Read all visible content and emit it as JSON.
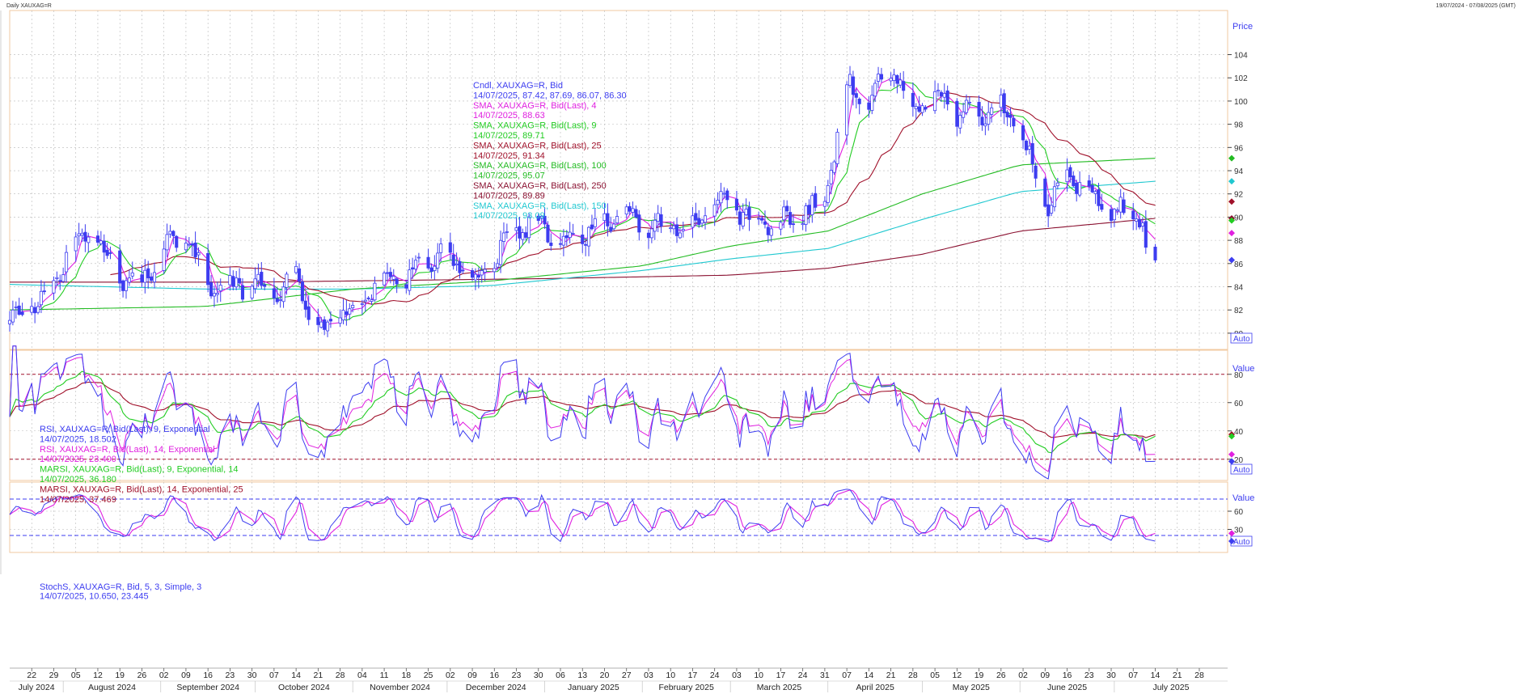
{
  "window": {
    "title": "Daily XAUXAG=R",
    "date_range": "19/07/2024 - 07/08/2025 (GMT)"
  },
  "chart_data": [
    {
      "type": "line",
      "panel": "price",
      "axis_title": "Price",
      "auto_label": "Auto",
      "ylim": [
        78.6,
        107.8
      ],
      "yticks": [
        80,
        82,
        84,
        86,
        88,
        90,
        92,
        94,
        96,
        98,
        100,
        102,
        104
      ],
      "series_anchor": "14/07/2025",
      "legend": [
        {
          "name": "Cndl, XAUXAG=R, Bid",
          "value": "14/07/2025, 87.42, 87.69, 86.07, 86.30",
          "color": "#3d3df0"
        },
        {
          "name": "SMA, XAUXAG=R, Bid(Last),  4",
          "value": "14/07/2025, 88.63",
          "color": "#e020e0"
        },
        {
          "name": "SMA, XAUXAG=R, Bid(Last),  9",
          "value": "14/07/2025, 89.71",
          "color": "#22cc22"
        },
        {
          "name": "SMA, XAUXAG=R, Bid(Last),  25",
          "value": "14/07/2025, 91.34",
          "color": "#a0102a"
        },
        {
          "name": "SMA, XAUXAG=R, Bid(Last),  100",
          "value": "14/07/2025, 95.07",
          "color": "#22bb22"
        },
        {
          "name": "SMA, XAUXAG=R, Bid(Last),  250",
          "value": "14/07/2025, 89.89",
          "color": "#8a1030"
        },
        {
          "name": "SMA, XAUXAG=R, Bid(Last),  150",
          "value": "14/07/2025, 93.09",
          "color": "#20c8d0"
        }
      ],
      "close_anchors": [
        {
          "x": "2024-07-15",
          "y": 81.0
        },
        {
          "x": "2024-07-29",
          "y": 84.0
        },
        {
          "x": "2024-08-05",
          "y": 88.5
        },
        {
          "x": "2024-08-12",
          "y": 88.0
        },
        {
          "x": "2024-08-19",
          "y": 85.0
        },
        {
          "x": "2024-08-26",
          "y": 84.5
        },
        {
          "x": "2024-09-02",
          "y": 87.5
        },
        {
          "x": "2024-09-09",
          "y": 88.8
        },
        {
          "x": "2024-09-16",
          "y": 84.0
        },
        {
          "x": "2024-09-23",
          "y": 83.8
        },
        {
          "x": "2024-09-30",
          "y": 84.5
        },
        {
          "x": "2024-10-07",
          "y": 83.5
        },
        {
          "x": "2024-10-14",
          "y": 84.8
        },
        {
          "x": "2024-10-21",
          "y": 80.0
        },
        {
          "x": "2024-10-28",
          "y": 81.5
        },
        {
          "x": "2024-11-04",
          "y": 83.0
        },
        {
          "x": "2024-11-11",
          "y": 85.0
        },
        {
          "x": "2024-11-18",
          "y": 84.8
        },
        {
          "x": "2024-11-25",
          "y": 86.5
        },
        {
          "x": "2024-12-02",
          "y": 86.5
        },
        {
          "x": "2024-12-09",
          "y": 84.0
        },
        {
          "x": "2024-12-16",
          "y": 86.5
        },
        {
          "x": "2024-12-23",
          "y": 89.0
        },
        {
          "x": "2024-12-30",
          "y": 89.5
        },
        {
          "x": "2025-01-06",
          "y": 88.0
        },
        {
          "x": "2025-01-13",
          "y": 88.5
        },
        {
          "x": "2025-01-20",
          "y": 89.5
        },
        {
          "x": "2025-01-27",
          "y": 90.0
        },
        {
          "x": "2025-02-03",
          "y": 88.8
        },
        {
          "x": "2025-02-10",
          "y": 89.5
        },
        {
          "x": "2025-02-17",
          "y": 89.0
        },
        {
          "x": "2025-02-24",
          "y": 91.5
        },
        {
          "x": "2025-03-03",
          "y": 90.5
        },
        {
          "x": "2025-03-10",
          "y": 89.0
        },
        {
          "x": "2025-03-17",
          "y": 89.5
        },
        {
          "x": "2025-03-24",
          "y": 90.5
        },
        {
          "x": "2025-03-31",
          "y": 91.0
        },
        {
          "x": "2025-04-07",
          "y": 101.5
        },
        {
          "x": "2025-04-14",
          "y": 100.0
        },
        {
          "x": "2025-04-21",
          "y": 103.0
        },
        {
          "x": "2025-04-28",
          "y": 98.5
        },
        {
          "x": "2025-05-05",
          "y": 101.0
        },
        {
          "x": "2025-05-12",
          "y": 99.0
        },
        {
          "x": "2025-05-19",
          "y": 99.0
        },
        {
          "x": "2025-05-26",
          "y": 99.5
        },
        {
          "x": "2025-06-02",
          "y": 97.0
        },
        {
          "x": "2025-06-09",
          "y": 91.0
        },
        {
          "x": "2025-06-16",
          "y": 93.0
        },
        {
          "x": "2025-06-23",
          "y": 92.5
        },
        {
          "x": "2025-06-30",
          "y": 90.5
        },
        {
          "x": "2025-07-07",
          "y": 90.5
        },
        {
          "x": "2025-07-10",
          "y": 89.5
        },
        {
          "x": "2025-07-11",
          "y": 87.4
        },
        {
          "x": "2025-07-14",
          "y": 86.3
        }
      ],
      "sma_100_anchors": [
        {
          "x": "2024-07-15",
          "y": 82.0
        },
        {
          "x": "2024-09-15",
          "y": 82.3
        },
        {
          "x": "2024-11-01",
          "y": 83.8
        },
        {
          "x": "2024-12-15",
          "y": 84.5
        },
        {
          "x": "2025-02-01",
          "y": 85.8
        },
        {
          "x": "2025-03-01",
          "y": 87.5
        },
        {
          "x": "2025-04-01",
          "y": 88.8
        },
        {
          "x": "2025-05-01",
          "y": 92.0
        },
        {
          "x": "2025-06-01",
          "y": 94.5
        },
        {
          "x": "2025-07-14",
          "y": 95.07
        }
      ],
      "sma_150_anchors": [
        {
          "x": "2024-07-15",
          "y": 84.2
        },
        {
          "x": "2024-09-15",
          "y": 83.8
        },
        {
          "x": "2024-11-01",
          "y": 83.8
        },
        {
          "x": "2024-12-15",
          "y": 84.1
        },
        {
          "x": "2025-02-01",
          "y": 85.4
        },
        {
          "x": "2025-03-01",
          "y": 86.4
        },
        {
          "x": "2025-04-01",
          "y": 87.3
        },
        {
          "x": "2025-05-01",
          "y": 89.8
        },
        {
          "x": "2025-06-01",
          "y": 92.2
        },
        {
          "x": "2025-07-14",
          "y": 93.09
        }
      ],
      "sma_250_anchors": [
        {
          "x": "2024-07-15",
          "y": 84.4
        },
        {
          "x": "2024-10-01",
          "y": 84.4
        },
        {
          "x": "2025-01-01",
          "y": 84.7
        },
        {
          "x": "2025-03-01",
          "y": 85.0
        },
        {
          "x": "2025-04-01",
          "y": 85.6
        },
        {
          "x": "2025-05-01",
          "y": 86.8
        },
        {
          "x": "2025-06-01",
          "y": 88.8
        },
        {
          "x": "2025-07-14",
          "y": 89.89
        }
      ]
    },
    {
      "type": "line",
      "panel": "rsi",
      "axis_title": "Value",
      "auto_label": "Auto",
      "ylim": [
        5,
        97
      ],
      "yticks": [
        20,
        40,
        60,
        80
      ],
      "reference_lines": [
        20,
        80
      ],
      "legend": [
        {
          "name": "RSI, XAUXAG=R, Bid(Last),  9, Exponential",
          "value": "14/07/2025, 18.502",
          "color": "#3d3df0"
        },
        {
          "name": "RSI, XAUXAG=R, Bid(Last),  14, Exponential",
          "value": "14/07/2025, 23.400",
          "color": "#e020e0"
        },
        {
          "name": "MARSI, XAUXAG=R, Bid(Last),  9, Exponential, 14",
          "value": "14/07/2025, 36.180",
          "color": "#22cc22"
        },
        {
          "name": "MARSI, XAUXAG=R, Bid(Last),  14, Exponential, 25",
          "value": "14/07/2025, 37.469",
          "color": "#a0102a"
        }
      ]
    },
    {
      "type": "line",
      "panel": "stochastic",
      "axis_title": "Value",
      "auto_label": "Auto",
      "ylim": [
        -8,
        108
      ],
      "yticks": [
        30,
        60
      ],
      "reference_lines": [
        20,
        80
      ],
      "legend": [
        {
          "name": "StochS, XAUXAG=R, Bid,  5, 3, Simple, 3",
          "value": "14/07/2025, 10.650, 23.445",
          "color": "#3d3df0"
        }
      ]
    }
  ],
  "x_axis": {
    "start": "2024-07-15",
    "end": "2025-08-06",
    "day_ticks": [
      {
        "label": "22",
        "date": "2024-07-22"
      },
      {
        "label": "29",
        "date": "2024-07-29"
      },
      {
        "label": "05",
        "date": "2024-08-05"
      },
      {
        "label": "12",
        "date": "2024-08-12"
      },
      {
        "label": "19",
        "date": "2024-08-19"
      },
      {
        "label": "26",
        "date": "2024-08-26"
      },
      {
        "label": "02",
        "date": "2024-09-02"
      },
      {
        "label": "09",
        "date": "2024-09-09"
      },
      {
        "label": "16",
        "date": "2024-09-16"
      },
      {
        "label": "23",
        "date": "2024-09-23"
      },
      {
        "label": "30",
        "date": "2024-09-30"
      },
      {
        "label": "07",
        "date": "2024-10-07"
      },
      {
        "label": "14",
        "date": "2024-10-14"
      },
      {
        "label": "21",
        "date": "2024-10-21"
      },
      {
        "label": "28",
        "date": "2024-10-28"
      },
      {
        "label": "04",
        "date": "2024-11-04"
      },
      {
        "label": "11",
        "date": "2024-11-11"
      },
      {
        "label": "18",
        "date": "2024-11-18"
      },
      {
        "label": "25",
        "date": "2024-11-25"
      },
      {
        "label": "02",
        "date": "2024-12-02"
      },
      {
        "label": "09",
        "date": "2024-12-09"
      },
      {
        "label": "16",
        "date": "2024-12-16"
      },
      {
        "label": "23",
        "date": "2024-12-23"
      },
      {
        "label": "30",
        "date": "2024-12-30"
      },
      {
        "label": "06",
        "date": "2025-01-06"
      },
      {
        "label": "13",
        "date": "2025-01-13"
      },
      {
        "label": "20",
        "date": "2025-01-20"
      },
      {
        "label": "27",
        "date": "2025-01-27"
      },
      {
        "label": "03",
        "date": "2025-02-03"
      },
      {
        "label": "10",
        "date": "2025-02-10"
      },
      {
        "label": "17",
        "date": "2025-02-17"
      },
      {
        "label": "24",
        "date": "2025-02-24"
      },
      {
        "label": "03",
        "date": "2025-03-03"
      },
      {
        "label": "10",
        "date": "2025-03-10"
      },
      {
        "label": "17",
        "date": "2025-03-17"
      },
      {
        "label": "24",
        "date": "2025-03-24"
      },
      {
        "label": "31",
        "date": "2025-03-31"
      },
      {
        "label": "07",
        "date": "2025-04-07"
      },
      {
        "label": "14",
        "date": "2025-04-14"
      },
      {
        "label": "21",
        "date": "2025-04-21"
      },
      {
        "label": "28",
        "date": "2025-04-28"
      },
      {
        "label": "05",
        "date": "2025-05-05"
      },
      {
        "label": "12",
        "date": "2025-05-12"
      },
      {
        "label": "19",
        "date": "2025-05-19"
      },
      {
        "label": "26",
        "date": "2025-05-26"
      },
      {
        "label": "02",
        "date": "2025-06-02"
      },
      {
        "label": "09",
        "date": "2025-06-09"
      },
      {
        "label": "16",
        "date": "2025-06-16"
      },
      {
        "label": "23",
        "date": "2025-06-23"
      },
      {
        "label": "30",
        "date": "2025-06-30"
      },
      {
        "label": "07",
        "date": "2025-07-07"
      },
      {
        "label": "14",
        "date": "2025-07-14"
      },
      {
        "label": "21",
        "date": "2025-07-21"
      },
      {
        "label": "28",
        "date": "2025-07-28"
      }
    ],
    "months": [
      {
        "label": "July 2024",
        "date": "2024-07-15"
      },
      {
        "label": "August 2024",
        "date": "2024-08-01"
      },
      {
        "label": "September 2024",
        "date": "2024-09-01"
      },
      {
        "label": "October 2024",
        "date": "2024-10-01"
      },
      {
        "label": "November 2024",
        "date": "2024-11-01"
      },
      {
        "label": "December 2024",
        "date": "2024-12-01"
      },
      {
        "label": "January 2025",
        "date": "2025-01-01"
      },
      {
        "label": "February 2025",
        "date": "2025-02-01"
      },
      {
        "label": "March 2025",
        "date": "2025-03-01"
      },
      {
        "label": "April 2025",
        "date": "2025-04-01"
      },
      {
        "label": "May 2025",
        "date": "2025-05-01"
      },
      {
        "label": "June 2025",
        "date": "2025-06-01"
      },
      {
        "label": "July 2025",
        "date": "2025-07-01"
      }
    ]
  },
  "colors": {
    "frame": "#f2c9a0",
    "grid": "#b8b8b8",
    "candle": "#3d3df0",
    "sma4": "#e020e0",
    "sma9": "#22cc22",
    "sma25": "#a0102a",
    "sma100": "#22bb22",
    "sma150": "#20c8d0",
    "sma250": "#8a1030",
    "rsi_ref": "#a0102a",
    "stoch_ref": "#3d3df0"
  }
}
